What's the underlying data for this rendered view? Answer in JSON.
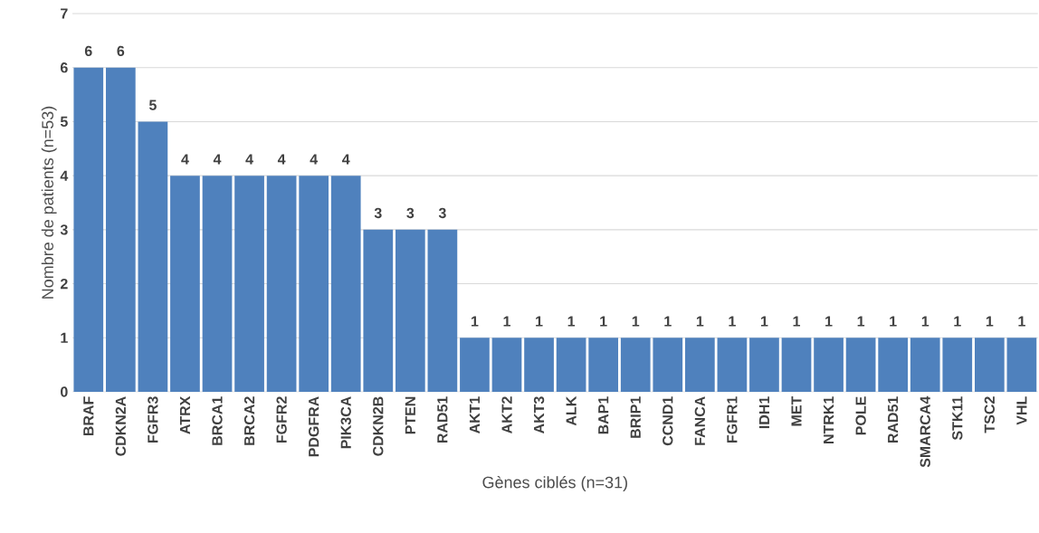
{
  "chart_data": {
    "type": "bar",
    "xlabel": "Gènes ciblés (n=31)",
    "ylabel": "Nombre de patients (n=53)",
    "categories": [
      "BRAF",
      "CDKN2A",
      "FGFR3",
      "ATRX",
      "BRCA1",
      "BRCA2",
      "FGFR2",
      "PDGFRA",
      "PIK3CA",
      "CDKN2B",
      "PTEN",
      "RAD51",
      "AKT1",
      "AKT2",
      "AKT3",
      "ALK",
      "BAP1",
      "BRIP1",
      "CCND1",
      "FANCA",
      "FGFR1",
      "IDH1",
      "MET",
      "NTRK1",
      "POLE",
      "RAD51",
      "SMARCA4",
      "STK11",
      "TSC2",
      "VHL"
    ],
    "values": [
      6,
      6,
      5,
      4,
      4,
      4,
      4,
      4,
      4,
      3,
      3,
      3,
      1,
      1,
      1,
      1,
      1,
      1,
      1,
      1,
      1,
      1,
      1,
      1,
      1,
      1,
      1,
      1,
      1,
      1
    ],
    "color": "#4f81bd",
    "ylim": [
      0,
      7
    ],
    "yticks": [
      0,
      1,
      2,
      3,
      4,
      5,
      6,
      7
    ],
    "grid": "y",
    "data_labels": true
  }
}
